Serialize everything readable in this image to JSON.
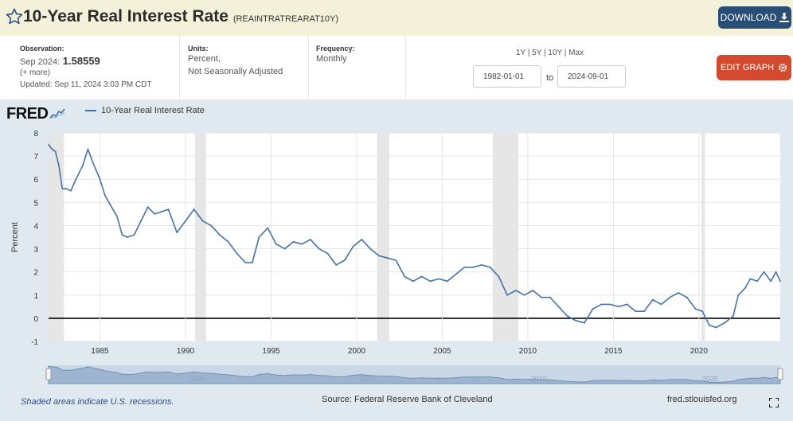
{
  "header": {
    "title": "10-Year Real Interest Rate",
    "series_id": "(REAINTRATREARAT10Y)",
    "download_label": "DOWNLOAD"
  },
  "observation": {
    "label": "Observation:",
    "period": "Sep 2024:",
    "value": "1.58559",
    "more": "(+ more)",
    "updated": "Updated: Sep 11, 2024 3:03 PM CDT"
  },
  "units": {
    "label": "Units:",
    "line1": "Percent,",
    "line2": "Not Seasonally Adjusted"
  },
  "frequency": {
    "label": "Frequency:",
    "value": "Monthly"
  },
  "range": {
    "options": "1Y | 5Y | 10Y | Max",
    "start": "1982-01-01",
    "to": "to",
    "end": "2024-09-01"
  },
  "edit_label": "EDIT GRAPH",
  "logo": "FRED",
  "footer": {
    "note": "Shaded areas indicate U.S. recessions.",
    "source": "Source: Federal Reserve Bank of Cleveland",
    "url": "fred.stlouisfed.org"
  },
  "colors": {
    "line": "#4572a7",
    "recession": "#e6e6e6",
    "plot_bg": "#ffffff",
    "frame_bg": "#e1e9f0",
    "header_bg": "#f3f1d9",
    "download_btn": "#294e74",
    "edit_btn": "#d34a2f"
  },
  "icons": {
    "star": "star-icon",
    "download": "download-icon",
    "edit": "gear-icon",
    "expand": "fullscreen-icon"
  },
  "chart_data": {
    "type": "line",
    "title": "",
    "xlabel": "",
    "ylabel": "Percent",
    "ylim": [
      -1,
      8
    ],
    "xlim": [
      1982.0,
      2024.75
    ],
    "grid": true,
    "legend_placement": "top-left",
    "yticks": [
      -1,
      0,
      1,
      2,
      3,
      4,
      5,
      6,
      7,
      8
    ],
    "xticks": [
      1985,
      1990,
      1995,
      2000,
      2005,
      2010,
      2015,
      2020
    ],
    "navigator_labels": [
      1990,
      2000,
      2010,
      2020
    ],
    "recessions": [
      [
        1982.0,
        1982.9
      ],
      [
        1990.55,
        1991.2
      ],
      [
        2001.2,
        2001.9
      ],
      [
        2007.95,
        2009.45
      ],
      [
        2020.15,
        2020.35
      ]
    ],
    "series": [
      {
        "name": "10-Year Real Interest Rate",
        "x": [
          1982.0,
          1982.2,
          1982.4,
          1982.6,
          1982.8,
          1983.0,
          1983.3,
          1983.6,
          1984.0,
          1984.3,
          1984.6,
          1985.0,
          1985.3,
          1985.6,
          1986.0,
          1986.3,
          1986.6,
          1987.0,
          1987.4,
          1987.8,
          1988.2,
          1988.6,
          1989.0,
          1989.5,
          1990.0,
          1990.5,
          1991.0,
          1991.5,
          1992.0,
          1992.5,
          1993.0,
          1993.5,
          1993.9,
          1994.3,
          1994.8,
          1995.3,
          1995.8,
          1996.3,
          1996.8,
          1997.3,
          1997.8,
          1998.3,
          1998.8,
          1999.3,
          1999.8,
          2000.3,
          2000.8,
          2001.3,
          2001.8,
          2002.3,
          2002.8,
          2003.3,
          2003.8,
          2004.3,
          2004.8,
          2005.3,
          2005.8,
          2006.3,
          2006.8,
          2007.3,
          2007.8,
          2008.3,
          2008.8,
          2009.3,
          2009.8,
          2010.3,
          2010.8,
          2011.3,
          2011.8,
          2012.3,
          2012.8,
          2013.3,
          2013.8,
          2014.3,
          2014.8,
          2015.3,
          2015.8,
          2016.3,
          2016.8,
          2017.3,
          2017.8,
          2018.3,
          2018.8,
          2019.3,
          2019.8,
          2020.2,
          2020.6,
          2021.0,
          2021.5,
          2022.0,
          2022.3,
          2022.7,
          2023.0,
          2023.4,
          2023.8,
          2024.2,
          2024.5,
          2024.75
        ],
        "values": [
          7.5,
          7.3,
          7.2,
          6.6,
          5.6,
          5.6,
          5.5,
          6.0,
          6.6,
          7.3,
          6.7,
          6.0,
          5.3,
          4.9,
          4.4,
          3.6,
          3.5,
          3.6,
          4.2,
          4.8,
          4.5,
          4.6,
          4.7,
          3.7,
          4.2,
          4.7,
          4.2,
          4.0,
          3.6,
          3.3,
          2.8,
          2.4,
          2.4,
          3.5,
          3.9,
          3.2,
          3.0,
          3.3,
          3.2,
          3.4,
          3.0,
          2.8,
          2.3,
          2.5,
          3.1,
          3.4,
          3.0,
          2.7,
          2.6,
          2.5,
          1.8,
          1.6,
          1.8,
          1.6,
          1.7,
          1.6,
          1.9,
          2.2,
          2.2,
          2.3,
          2.2,
          1.8,
          1.0,
          1.2,
          1.0,
          1.2,
          0.9,
          0.9,
          0.5,
          0.1,
          -0.1,
          -0.2,
          0.4,
          0.6,
          0.6,
          0.5,
          0.6,
          0.3,
          0.3,
          0.8,
          0.6,
          0.9,
          1.1,
          0.9,
          0.4,
          0.3,
          -0.3,
          -0.4,
          -0.2,
          0.1,
          1.0,
          1.3,
          1.7,
          1.6,
          2.0,
          1.6,
          2.0,
          1.6
        ]
      }
    ]
  }
}
